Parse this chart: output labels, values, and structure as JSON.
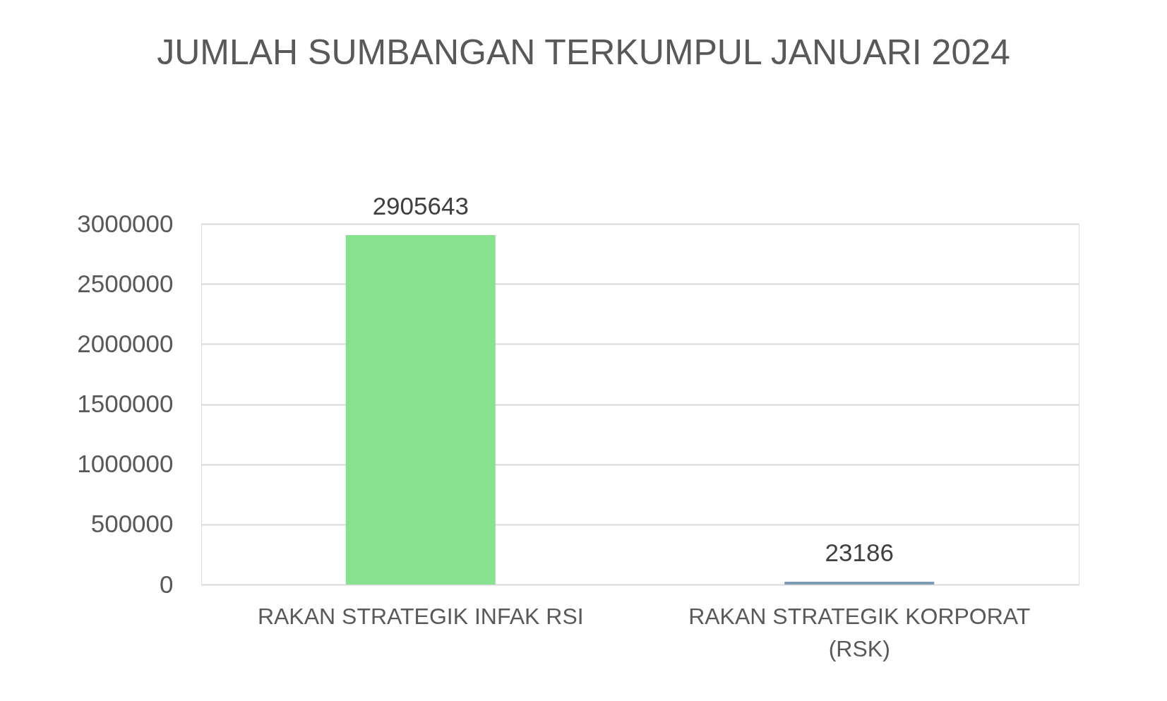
{
  "chart_data": {
    "type": "bar",
    "title": "JUMLAH SUMBANGAN TERKUMPUL JANUARI 2024",
    "categories": [
      "RAKAN STRATEGIK INFAK RSI",
      "RAKAN STRATEGIK KORPORAT (RSK)"
    ],
    "values": [
      2905643,
      23186
    ],
    "colors": [
      "#86e28e",
      "#7f9ab3"
    ],
    "ylim": [
      0,
      3000000
    ],
    "yticks": [
      0,
      500000,
      1000000,
      1500000,
      2000000,
      2500000,
      3000000
    ],
    "grid": "y",
    "data_labels": true,
    "legend": false
  }
}
